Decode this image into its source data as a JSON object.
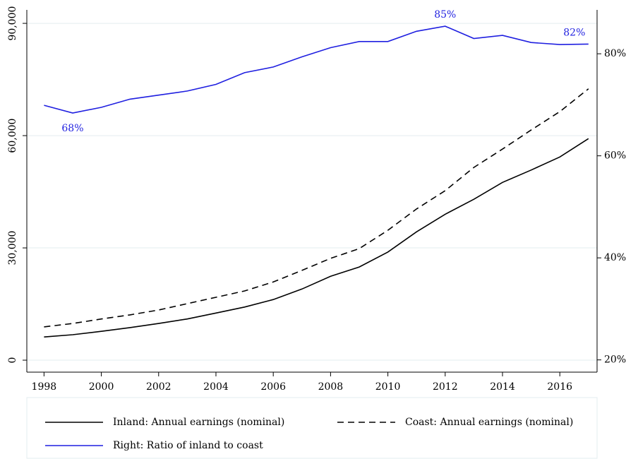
{
  "chart_data": {
    "type": "line",
    "x": [
      1998,
      1999,
      2000,
      2001,
      2002,
      2003,
      2004,
      2005,
      2006,
      2007,
      2008,
      2009,
      2010,
      2011,
      2012,
      2013,
      2014,
      2015,
      2016,
      2017
    ],
    "xlim": [
      1997.4,
      2017.3
    ],
    "xticks": [
      1998,
      2000,
      2002,
      2004,
      2006,
      2008,
      2010,
      2012,
      2014,
      2016
    ],
    "ylim": [
      -3200,
      93600
    ],
    "yticks": [
      0,
      {
        "value": 30000,
        "label": "30,000"
      },
      {
        "value": 60000,
        "label": "60,000"
      },
      {
        "value": 90000,
        "label": "90,000"
      }
    ],
    "y2lim": [
      17.6,
      88.6
    ],
    "y2ticks": [
      {
        "value": 20,
        "label": "20%"
      },
      {
        "value": 40,
        "label": "40%"
      },
      {
        "value": 60,
        "label": "60%"
      },
      {
        "value": 80,
        "label": "80%"
      }
    ],
    "grid": true,
    "series": [
      {
        "name": "Inland: Annual earnings (nominal)",
        "color": "#000000",
        "style": "solid",
        "values": [
          6200,
          6800,
          7700,
          8700,
          9800,
          11000,
          12600,
          14200,
          16200,
          19000,
          22400,
          24900,
          28900,
          34300,
          39000,
          43000,
          47500,
          50800,
          54300,
          59200
        ]
      },
      {
        "name": "Coast: Annual earnings (nominal)",
        "color": "#000000",
        "style": "dashed",
        "values": [
          8900,
          9800,
          11000,
          12100,
          13400,
          15100,
          16800,
          18500,
          20900,
          24000,
          27200,
          29800,
          34700,
          40400,
          45300,
          51500,
          56400,
          61500,
          66400,
          72500
        ]
      },
      {
        "name": "Right: Ratio of inland to coast",
        "color": "#1f1fe0",
        "style": "solid",
        "axis": "y2",
        "values": [
          69.9,
          68.4,
          69.5,
          71.1,
          71.9,
          72.7,
          74.0,
          76.3,
          77.4,
          79.4,
          81.2,
          82.4,
          82.4,
          84.4,
          85.4,
          83.0,
          83.6,
          82.2,
          81.8,
          81.9
        ],
        "value_labels": [
          null,
          "68%",
          null,
          null,
          null,
          null,
          null,
          null,
          null,
          null,
          null,
          null,
          null,
          null,
          "85%",
          null,
          null,
          null,
          null,
          "82%"
        ]
      }
    ]
  }
}
